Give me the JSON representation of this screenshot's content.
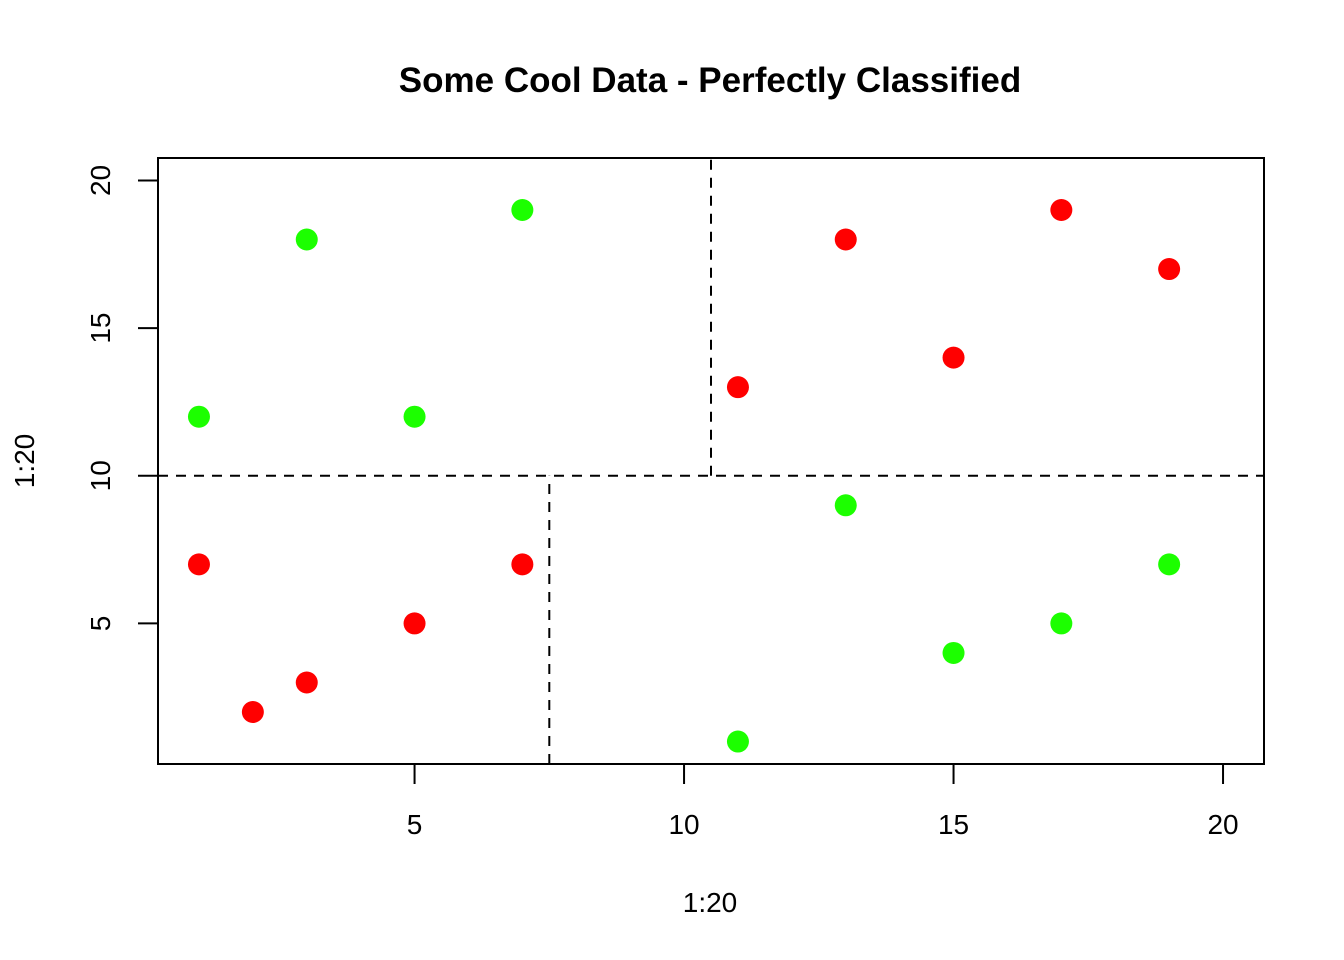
{
  "chart_data": {
    "type": "scatter",
    "title": "Some Cool Data - Perfectly Classified",
    "xlabel": "1:20",
    "ylabel": "1:20",
    "xlim": [
      0.24,
      20.76
    ],
    "ylim": [
      0.24,
      20.76
    ],
    "x_ticks": [
      5,
      10,
      15,
      20
    ],
    "y_ticks": [
      5,
      10,
      15,
      20
    ],
    "grid": false,
    "colors": {
      "red": "#ff0000",
      "green": "#1cff00"
    },
    "series": [
      {
        "color": "red",
        "points": [
          {
            "x": 1,
            "y": 7
          },
          {
            "x": 2,
            "y": 2
          },
          {
            "x": 3,
            "y": 3
          },
          {
            "x": 5,
            "y": 5
          },
          {
            "x": 7,
            "y": 7
          },
          {
            "x": 11,
            "y": 13
          },
          {
            "x": 13,
            "y": 18
          },
          {
            "x": 15,
            "y": 14
          },
          {
            "x": 17,
            "y": 19
          },
          {
            "x": 19,
            "y": 17
          }
        ]
      },
      {
        "color": "green",
        "points": [
          {
            "x": 1,
            "y": 12
          },
          {
            "x": 3,
            "y": 18
          },
          {
            "x": 5,
            "y": 12
          },
          {
            "x": 7,
            "y": 19
          },
          {
            "x": 11,
            "y": 1
          },
          {
            "x": 13,
            "y": 9
          },
          {
            "x": 15,
            "y": 4
          },
          {
            "x": 17,
            "y": 5
          },
          {
            "x": 19,
            "y": 7
          }
        ]
      }
    ],
    "split_lines": [
      {
        "orientation": "horizontal",
        "at": 10,
        "from": 0.24,
        "to": 20.76
      },
      {
        "orientation": "vertical",
        "at": 7.5,
        "from": 0.24,
        "to": 10
      },
      {
        "orientation": "vertical",
        "at": 10.5,
        "from": 10,
        "to": 20.76
      }
    ]
  }
}
